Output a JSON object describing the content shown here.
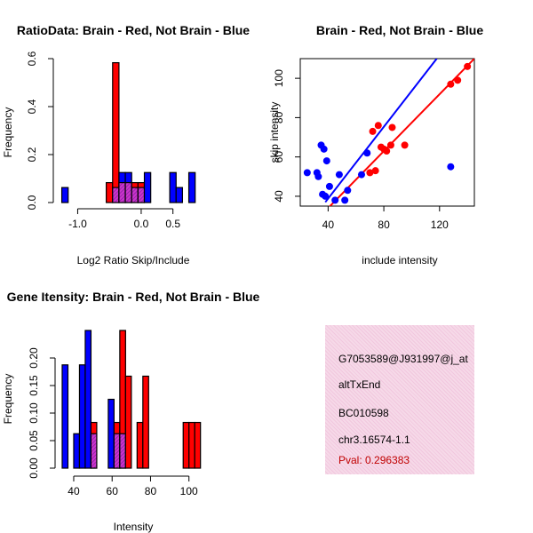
{
  "chart_data": [
    {
      "type": "bar",
      "subtype": "overlaid-histogram",
      "title": "RatioData: Brain - Red, Not Brain - Blue",
      "xlabel": "Log2 Ratio Skip/Include",
      "ylabel": "Frequency",
      "xlim": [
        -1.3,
        1.05
      ],
      "ylim": [
        0,
        0.6
      ],
      "bin_width": 0.1,
      "xticks": [
        -1.0,
        0.0,
        0.5
      ],
      "xtick_labels": [
        "-1.0",
        "0.0",
        "0.5"
      ],
      "yticks": [
        0,
        0.2,
        0.4,
        0.6
      ],
      "ytick_labels": [
        "0.0",
        "0.2",
        "0.4",
        "0.6"
      ],
      "series": [
        {
          "name": "Brain",
          "color": "#ff0000",
          "bins": [
            {
              "x0": -0.55,
              "v": 0.083
            },
            {
              "x0": -0.45,
              "v": 0.583
            },
            {
              "x0": -0.35,
              "v": 0.083
            },
            {
              "x0": -0.25,
              "v": 0.083
            },
            {
              "x0": -0.15,
              "v": 0.083
            },
            {
              "x0": -0.05,
              "v": 0.083
            }
          ]
        },
        {
          "name": "Not Brain",
          "color": "#0000ff",
          "bins": [
            {
              "x0": -1.25,
              "v": 0.0625
            },
            {
              "x0": -0.45,
              "v": 0.0625
            },
            {
              "x0": -0.35,
              "v": 0.125
            },
            {
              "x0": -0.25,
              "v": 0.125
            },
            {
              "x0": -0.15,
              "v": 0.0625
            },
            {
              "x0": -0.05,
              "v": 0.0625
            },
            {
              "x0": 0.05,
              "v": 0.125
            },
            {
              "x0": 0.45,
              "v": 0.125
            },
            {
              "x0": 0.55,
              "v": 0.0625
            },
            {
              "x0": 0.75,
              "v": 0.125
            }
          ]
        }
      ]
    },
    {
      "type": "scatter",
      "title": "Brain - Red, Not Brain - Blue",
      "xlabel": "include intensity",
      "ylabel": "skip intensity",
      "xlim": [
        20,
        145
      ],
      "ylim": [
        35,
        110
      ],
      "xticks": [
        40,
        80,
        120
      ],
      "yticks": [
        40,
        60,
        80,
        100
      ],
      "series": [
        {
          "name": "Brain",
          "color": "#ff0000",
          "points": [
            [
              70,
              52
            ],
            [
              72,
              73
            ],
            [
              74,
              53
            ],
            [
              76,
              76
            ],
            [
              78,
              65
            ],
            [
              80,
              64
            ],
            [
              82,
              63
            ],
            [
              85,
              66
            ],
            [
              86,
              75
            ],
            [
              95,
              66
            ],
            [
              128,
              97
            ],
            [
              133,
              99
            ],
            [
              140,
              106
            ]
          ],
          "fit": [
            [
              40,
              34
            ],
            [
              145,
              110
            ]
          ]
        },
        {
          "name": "Not Brain",
          "color": "#0000ff",
          "points": [
            [
              25,
              52
            ],
            [
              32,
              52
            ],
            [
              33,
              50
            ],
            [
              35,
              66
            ],
            [
              36,
              41
            ],
            [
              37,
              64
            ],
            [
              38,
              40
            ],
            [
              39,
              58
            ],
            [
              41,
              45
            ],
            [
              45,
              38
            ],
            [
              48,
              51
            ],
            [
              52,
              38
            ],
            [
              54,
              43
            ],
            [
              64,
              51
            ],
            [
              68,
              62
            ],
            [
              128,
              55
            ]
          ],
          "fit": [
            [
              38,
              37
            ],
            [
              118,
              110
            ]
          ]
        }
      ]
    },
    {
      "type": "bar",
      "subtype": "overlaid-histogram",
      "title": "Gene Itensity: Brain - Red, Not Brain - Blue",
      "xlabel": "Intensity",
      "ylabel": "Frequency",
      "xlim": [
        34,
        108
      ],
      "ylim": [
        0,
        0.25
      ],
      "bin_width": 3,
      "xticks": [
        40,
        60,
        80,
        100
      ],
      "yticks": [
        0,
        0.05,
        0.1,
        0.15,
        0.2
      ],
      "ytick_labels": [
        "0.00",
        "0.05",
        "0.10",
        "0.15",
        "0.20"
      ],
      "series": [
        {
          "name": "Brain",
          "color": "#ff0000",
          "bins": [
            {
              "x0": 49,
              "v": 0.083
            },
            {
              "x0": 61,
              "v": 0.083
            },
            {
              "x0": 64,
              "v": 0.25
            },
            {
              "x0": 67,
              "v": 0.167
            },
            {
              "x0": 73,
              "v": 0.083
            },
            {
              "x0": 76,
              "v": 0.167
            },
            {
              "x0": 97,
              "v": 0.083
            },
            {
              "x0": 100,
              "v": 0.083
            },
            {
              "x0": 103,
              "v": 0.083
            }
          ]
        },
        {
          "name": "Not Brain",
          "color": "#0000ff",
          "bins": [
            {
              "x0": 34,
              "v": 0.1875
            },
            {
              "x0": 40,
              "v": 0.0625
            },
            {
              "x0": 43,
              "v": 0.1875
            },
            {
              "x0": 46,
              "v": 0.25
            },
            {
              "x0": 49,
              "v": 0.0625
            },
            {
              "x0": 58,
              "v": 0.125
            },
            {
              "x0": 61,
              "v": 0.0625
            },
            {
              "x0": 64,
              "v": 0.0625
            }
          ]
        }
      ]
    }
  ],
  "info": {
    "lines": [
      "G7053589@J931997@j_at",
      "altTxEnd",
      "BC010598",
      "chr3.16574-1.1"
    ],
    "pval": "Pval: 0.296383"
  }
}
